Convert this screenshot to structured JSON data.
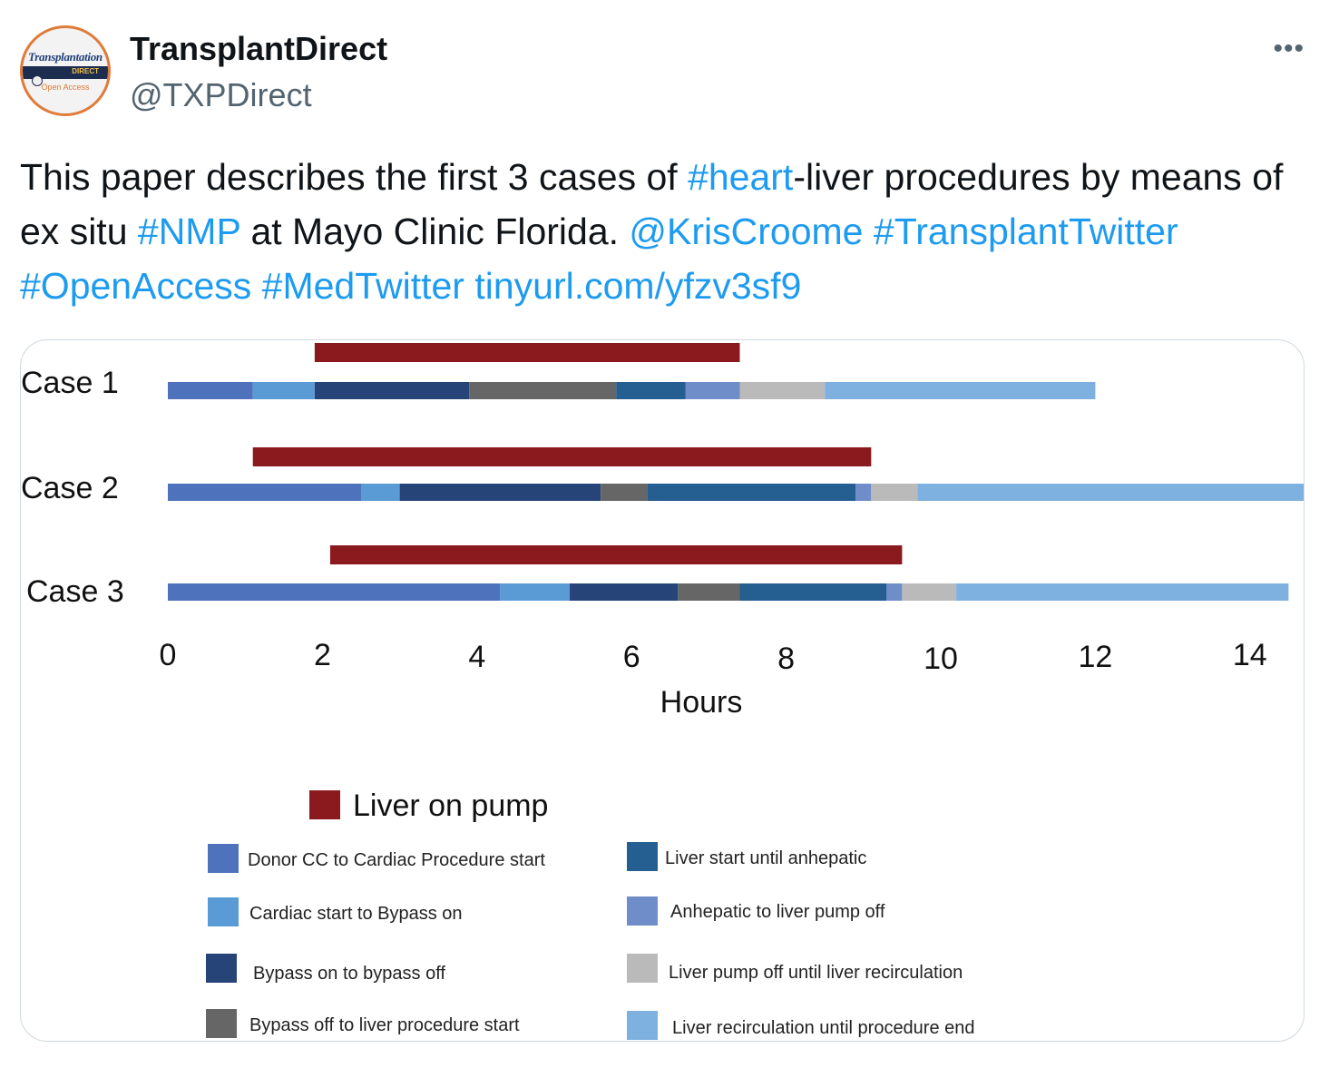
{
  "tweet": {
    "display_name": "TransplantDirect",
    "handle": "@TXPDirect",
    "more_label": "•••",
    "avatar": {
      "top_text": "Transplantation",
      "bottom_text": "Open Access"
    },
    "text_segments": [
      {
        "text": "This paper describes the first 3 cases of ",
        "link": false
      },
      {
        "text": "#heart",
        "link": true
      },
      {
        "text": "-liver procedures by means of ex situ ",
        "link": false
      },
      {
        "text": "#NMP",
        "link": true
      },
      {
        "text": " at Mayo Clinic Florida. ",
        "link": false
      },
      {
        "text": "@KrisCroome",
        "link": true
      },
      {
        "text": " ",
        "link": false
      },
      {
        "text": "#TransplantTwitter",
        "link": true
      },
      {
        "text": " ",
        "link": false
      },
      {
        "text": "#OpenAccess",
        "link": true
      },
      {
        "text": " ",
        "link": false
      },
      {
        "text": "#MedTwitter",
        "link": true
      },
      {
        "text": " ",
        "link": false
      },
      {
        "text": "tinyurl.com/yfzv3sf9",
        "link": true
      }
    ]
  },
  "chart_data": {
    "type": "bar",
    "orientation": "horizontal-stacked",
    "xlabel": "Hours",
    "x_ticks": [
      0,
      2,
      4,
      6,
      8,
      10,
      12,
      14
    ],
    "xlim": [
      0,
      14.6
    ],
    "grid": false,
    "cases": [
      {
        "label": "Case 1",
        "liver_on_pump": [
          1.9,
          7.4
        ],
        "segments": [
          {
            "key": "donor_cc",
            "start": 0,
            "end": 1.1
          },
          {
            "key": "cardiac_start",
            "start": 1.1,
            "end": 1.9
          },
          {
            "key": "bypass",
            "start": 1.9,
            "end": 3.9
          },
          {
            "key": "bypass_off",
            "start": 3.9,
            "end": 5.8
          },
          {
            "key": "liver_start",
            "start": 5.8,
            "end": 6.7
          },
          {
            "key": "anhepatic",
            "start": 6.7,
            "end": 7.4
          },
          {
            "key": "pump_off",
            "start": 7.4,
            "end": 8.5
          },
          {
            "key": "recirculation",
            "start": 8.5,
            "end": 12.0
          }
        ]
      },
      {
        "label": "Case 2",
        "liver_on_pump": [
          1.1,
          9.1
        ],
        "segments": [
          {
            "key": "donor_cc",
            "start": 0,
            "end": 2.5
          },
          {
            "key": "cardiac_start",
            "start": 2.5,
            "end": 3.0
          },
          {
            "key": "bypass",
            "start": 3.0,
            "end": 5.6
          },
          {
            "key": "bypass_off",
            "start": 5.6,
            "end": 6.2
          },
          {
            "key": "liver_start",
            "start": 6.2,
            "end": 8.9
          },
          {
            "key": "anhepatic",
            "start": 8.9,
            "end": 9.1
          },
          {
            "key": "pump_off",
            "start": 9.1,
            "end": 9.7
          },
          {
            "key": "recirculation",
            "start": 9.7,
            "end": 14.8
          }
        ]
      },
      {
        "label": "Case 3",
        "liver_on_pump": [
          2.1,
          9.5
        ],
        "segments": [
          {
            "key": "donor_cc",
            "start": 0,
            "end": 4.3
          },
          {
            "key": "cardiac_start",
            "start": 4.3,
            "end": 5.2
          },
          {
            "key": "bypass",
            "start": 5.2,
            "end": 6.6
          },
          {
            "key": "bypass_off",
            "start": 6.6,
            "end": 7.4
          },
          {
            "key": "liver_start",
            "start": 7.4,
            "end": 9.3
          },
          {
            "key": "anhepatic",
            "start": 9.3,
            "end": 9.5
          },
          {
            "key": "pump_off",
            "start": 9.5,
            "end": 10.2
          },
          {
            "key": "recirculation",
            "start": 10.2,
            "end": 14.5
          }
        ]
      }
    ],
    "legend": {
      "pump": {
        "label": "Liver on pump",
        "color": "#8b1a1f"
      },
      "items": [
        {
          "key": "donor_cc",
          "label": "Donor CC to Cardiac Procedure start",
          "color": "#4f72bd"
        },
        {
          "key": "cardiac_start",
          "label": "Cardiac start to Bypass on",
          "color": "#5b9bd5"
        },
        {
          "key": "bypass",
          "label": "Bypass on to bypass off",
          "color": "#264478"
        },
        {
          "key": "bypass_off",
          "label": "Bypass off to liver procedure start",
          "color": "#666666"
        },
        {
          "key": "liver_start",
          "label": "Liver start until anhepatic",
          "color": "#255e91"
        },
        {
          "key": "anhepatic",
          "label": "Anhepatic to liver pump off",
          "color": "#6f8dc9"
        },
        {
          "key": "pump_off",
          "label": "Liver pump off until liver recirculation",
          "color": "#bababa"
        },
        {
          "key": "recirculation",
          "label": "Liver recirculation until procedure end",
          "color": "#7fb1e0"
        }
      ]
    }
  }
}
